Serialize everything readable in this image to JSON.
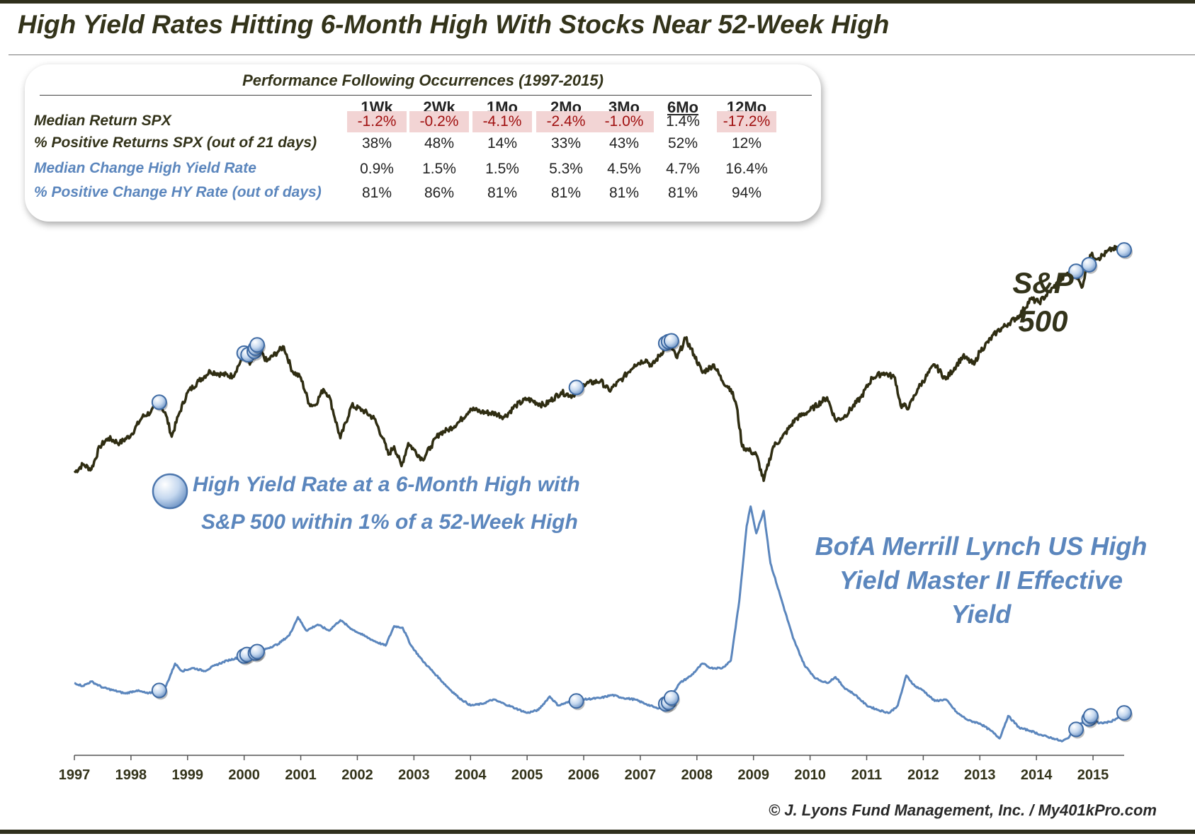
{
  "title": "High Yield Rates Hitting 6-Month High With Stocks Near 52-Week High",
  "credit": "© J. Lyons Fund Management, Inc. / My401kPro.com",
  "table": {
    "title": "Performance Following Occurrences (1997-2015)",
    "columns": [
      "1Wk",
      "2Wk",
      "1Mo",
      "2Mo",
      "3Mo",
      "6Mo",
      "12Mo"
    ],
    "rows": [
      {
        "label": "Median Return SPX",
        "values": [
          "-1.2%",
          "-0.2%",
          "-4.1%",
          "-2.4%",
          "-1.0%",
          "1.4%",
          "-17.2%"
        ]
      },
      {
        "label": "% Positive Returns SPX (out of 21 days)",
        "values": [
          "38%",
          "48%",
          "14%",
          "33%",
          "43%",
          "52%",
          "12%"
        ]
      },
      {
        "label": "Median Change High Yield Rate",
        "values": [
          "0.9%",
          "1.5%",
          "1.5%",
          "5.3%",
          "4.5%",
          "4.7%",
          "16.4%"
        ]
      },
      {
        "label": "% Positive Change HY Rate (out of days)",
        "values": [
          "81%",
          "86%",
          "81%",
          "81%",
          "81%",
          "81%",
          "94%"
        ]
      }
    ]
  },
  "legend": {
    "line1": "High Yield Rate at a 6-Month High with",
    "line2": "S&P 500 within 1% of a 52-Week High"
  },
  "labels": {
    "spx_line1": "S&P",
    "spx_line2": "500",
    "hy_line1": "BofA Merrill Lynch US High",
    "hy_line2": "Yield Master II Effective",
    "hy_line3": "Yield"
  },
  "colors": {
    "spx": "#2f2d12",
    "hy": "#5b86bd",
    "negative_cell": "#f2d4d4",
    "negative_text": "#a01010"
  },
  "chart_data": {
    "type": "line",
    "title": "High Yield Rates Hitting 6-Month High With Stocks Near 52-Week High",
    "x_tick_labels": [
      "1997",
      "1998",
      "1999",
      "2000",
      "2001",
      "2002",
      "2003",
      "2004",
      "2005",
      "2006",
      "2007",
      "2008",
      "2009",
      "2010",
      "2011",
      "2012",
      "2013",
      "2014",
      "2015"
    ],
    "xlim": [
      1997.0,
      2015.55
    ],
    "series": [
      {
        "name": "S&P 500",
        "ylim": [
          600,
          2200
        ],
        "points": [
          [
            1997.0,
            740
          ],
          [
            1997.15,
            790
          ],
          [
            1997.3,
            760
          ],
          [
            1997.45,
            900
          ],
          [
            1997.6,
            950
          ],
          [
            1997.8,
            920
          ],
          [
            1998.0,
            970
          ],
          [
            1998.2,
            1080
          ],
          [
            1998.35,
            1110
          ],
          [
            1998.5,
            1170
          ],
          [
            1998.62,
            1090
          ],
          [
            1998.72,
            960
          ],
          [
            1998.85,
            1100
          ],
          [
            1999.0,
            1230
          ],
          [
            1999.2,
            1300
          ],
          [
            1999.4,
            1360
          ],
          [
            1999.6,
            1340
          ],
          [
            1999.8,
            1330
          ],
          [
            2000.0,
            1460
          ],
          [
            2000.1,
            1400
          ],
          [
            2000.25,
            1500
          ],
          [
            2000.4,
            1420
          ],
          [
            2000.6,
            1480
          ],
          [
            2000.7,
            1510
          ],
          [
            2000.85,
            1360
          ],
          [
            2001.0,
            1320
          ],
          [
            2001.15,
            1160
          ],
          [
            2001.25,
            1150
          ],
          [
            2001.4,
            1250
          ],
          [
            2001.5,
            1210
          ],
          [
            2001.7,
            950
          ],
          [
            2001.9,
            1150
          ],
          [
            2002.1,
            1120
          ],
          [
            2002.3,
            1070
          ],
          [
            2002.45,
            950
          ],
          [
            2002.55,
            850
          ],
          [
            2002.65,
            900
          ],
          [
            2002.78,
            780
          ],
          [
            2002.9,
            920
          ],
          [
            2003.0,
            880
          ],
          [
            2003.15,
            820
          ],
          [
            2003.3,
            900
          ],
          [
            2003.45,
            980
          ],
          [
            2003.6,
            1000
          ],
          [
            2003.8,
            1050
          ],
          [
            2004.0,
            1130
          ],
          [
            2004.2,
            1110
          ],
          [
            2004.45,
            1100
          ],
          [
            2004.6,
            1080
          ],
          [
            2004.8,
            1150
          ],
          [
            2005.0,
            1190
          ],
          [
            2005.3,
            1150
          ],
          [
            2005.6,
            1230
          ],
          [
            2005.8,
            1210
          ],
          [
            2006.0,
            1280
          ],
          [
            2006.3,
            1300
          ],
          [
            2006.45,
            1240
          ],
          [
            2006.7,
            1320
          ],
          [
            2006.9,
            1400
          ],
          [
            2007.1,
            1430
          ],
          [
            2007.2,
            1390
          ],
          [
            2007.5,
            1530
          ],
          [
            2007.65,
            1440
          ],
          [
            2007.8,
            1560
          ],
          [
            2007.95,
            1460
          ],
          [
            2008.1,
            1350
          ],
          [
            2008.3,
            1400
          ],
          [
            2008.45,
            1300
          ],
          [
            2008.6,
            1250
          ],
          [
            2008.7,
            1150
          ],
          [
            2008.8,
            900
          ],
          [
            2008.95,
            870
          ],
          [
            2009.05,
            850
          ],
          [
            2009.18,
            690
          ],
          [
            2009.35,
            900
          ],
          [
            2009.5,
            950
          ],
          [
            2009.75,
            1070
          ],
          [
            2010.0,
            1120
          ],
          [
            2010.3,
            1200
          ],
          [
            2010.45,
            1060
          ],
          [
            2010.6,
            1080
          ],
          [
            2010.9,
            1200
          ],
          [
            2011.1,
            1320
          ],
          [
            2011.3,
            1350
          ],
          [
            2011.5,
            1320
          ],
          [
            2011.6,
            1150
          ],
          [
            2011.75,
            1140
          ],
          [
            2011.9,
            1250
          ],
          [
            2012.2,
            1400
          ],
          [
            2012.4,
            1310
          ],
          [
            2012.7,
            1450
          ],
          [
            2012.9,
            1400
          ],
          [
            2013.0,
            1480
          ],
          [
            2013.3,
            1600
          ],
          [
            2013.5,
            1650
          ],
          [
            2013.7,
            1700
          ],
          [
            2013.9,
            1800
          ],
          [
            2014.05,
            1780
          ],
          [
            2014.3,
            1870
          ],
          [
            2014.55,
            1960
          ],
          [
            2014.7,
            1950
          ],
          [
            2014.8,
            1870
          ],
          [
            2014.95,
            2070
          ],
          [
            2015.1,
            2050
          ],
          [
            2015.35,
            2110
          ],
          [
            2015.45,
            2100
          ],
          [
            2015.55,
            2090
          ]
        ],
        "signals": [
          [
            1998.5,
            1170
          ],
          [
            2000.0,
            1470
          ],
          [
            2000.07,
            1460
          ],
          [
            2000.18,
            1480
          ],
          [
            2000.2,
            1500
          ],
          [
            2000.23,
            1520
          ],
          [
            2007.45,
            1530
          ],
          [
            2007.5,
            1540
          ],
          [
            2007.55,
            1545
          ],
          [
            2005.87,
            1260
          ],
          [
            2014.7,
            1970
          ],
          [
            2014.93,
            2010
          ],
          [
            2015.55,
            2100
          ]
        ]
      },
      {
        "name": "BofA Merrill Lynch US High Yield Master II Effective Yield",
        "ylim": [
          4.5,
          22
        ],
        "points": [
          [
            1997.0,
            9.0
          ],
          [
            1997.15,
            8.8
          ],
          [
            1997.3,
            9.1
          ],
          [
            1997.5,
            8.7
          ],
          [
            1997.7,
            8.5
          ],
          [
            1997.9,
            8.3
          ],
          [
            1998.1,
            8.5
          ],
          [
            1998.3,
            8.3
          ],
          [
            1998.5,
            8.5
          ],
          [
            1998.62,
            8.8
          ],
          [
            1998.78,
            10.3
          ],
          [
            1998.9,
            9.8
          ],
          [
            1999.1,
            10.0
          ],
          [
            1999.3,
            9.8
          ],
          [
            1999.5,
            10.2
          ],
          [
            1999.7,
            10.5
          ],
          [
            1999.9,
            10.7
          ],
          [
            2000.0,
            10.8
          ],
          [
            2000.2,
            11.0
          ],
          [
            2000.4,
            11.3
          ],
          [
            2000.6,
            11.6
          ],
          [
            2000.8,
            12.2
          ],
          [
            2000.95,
            13.4
          ],
          [
            2001.1,
            12.5
          ],
          [
            2001.3,
            12.9
          ],
          [
            2001.5,
            12.5
          ],
          [
            2001.7,
            13.2
          ],
          [
            2001.9,
            12.6
          ],
          [
            2002.1,
            12.2
          ],
          [
            2002.3,
            11.8
          ],
          [
            2002.5,
            11.5
          ],
          [
            2002.65,
            12.8
          ],
          [
            2002.8,
            12.7
          ],
          [
            2002.95,
            11.5
          ],
          [
            2003.15,
            10.5
          ],
          [
            2003.4,
            9.5
          ],
          [
            2003.6,
            8.7
          ],
          [
            2003.8,
            8.0
          ],
          [
            2004.0,
            7.5
          ],
          [
            2004.2,
            7.6
          ],
          [
            2004.4,
            7.9
          ],
          [
            2004.6,
            7.6
          ],
          [
            2004.8,
            7.3
          ],
          [
            2005.0,
            7.0
          ],
          [
            2005.2,
            7.2
          ],
          [
            2005.4,
            8.1
          ],
          [
            2005.55,
            7.5
          ],
          [
            2005.8,
            7.8
          ],
          [
            2006.0,
            7.9
          ],
          [
            2006.3,
            8.0
          ],
          [
            2006.5,
            8.2
          ],
          [
            2006.7,
            8.0
          ],
          [
            2006.9,
            7.9
          ],
          [
            2007.1,
            7.6
          ],
          [
            2007.3,
            7.3
          ],
          [
            2007.45,
            7.6
          ],
          [
            2007.55,
            8.2
          ],
          [
            2007.7,
            9.0
          ],
          [
            2007.9,
            9.5
          ],
          [
            2008.1,
            10.3
          ],
          [
            2008.25,
            10.0
          ],
          [
            2008.45,
            10.0
          ],
          [
            2008.6,
            10.5
          ],
          [
            2008.75,
            14.5
          ],
          [
            2008.88,
            19.5
          ],
          [
            2008.95,
            20.8
          ],
          [
            2009.05,
            19.0
          ],
          [
            2009.18,
            20.5
          ],
          [
            2009.3,
            17.0
          ],
          [
            2009.5,
            14.5
          ],
          [
            2009.7,
            12.0
          ],
          [
            2009.9,
            10.2
          ],
          [
            2010.1,
            9.3
          ],
          [
            2010.3,
            9.0
          ],
          [
            2010.45,
            9.4
          ],
          [
            2010.6,
            8.7
          ],
          [
            2010.8,
            8.2
          ],
          [
            2011.0,
            7.5
          ],
          [
            2011.2,
            7.2
          ],
          [
            2011.4,
            7.0
          ],
          [
            2011.55,
            7.5
          ],
          [
            2011.7,
            9.5
          ],
          [
            2011.85,
            8.8
          ],
          [
            2012.0,
            8.5
          ],
          [
            2012.2,
            7.8
          ],
          [
            2012.4,
            7.9
          ],
          [
            2012.6,
            7.0
          ],
          [
            2012.8,
            6.5
          ],
          [
            2013.0,
            6.3
          ],
          [
            2013.2,
            5.8
          ],
          [
            2013.35,
            5.3
          ],
          [
            2013.5,
            6.8
          ],
          [
            2013.7,
            6.0
          ],
          [
            2013.9,
            5.8
          ],
          [
            2014.1,
            5.5
          ],
          [
            2014.3,
            5.3
          ],
          [
            2014.45,
            5.1
          ],
          [
            2014.55,
            5.3
          ],
          [
            2014.7,
            6.0
          ],
          [
            2014.85,
            6.5
          ],
          [
            2014.95,
            6.9
          ],
          [
            2015.1,
            6.3
          ],
          [
            2015.3,
            6.4
          ],
          [
            2015.45,
            6.7
          ],
          [
            2015.55,
            7.0
          ]
        ],
        "signals": [
          [
            1998.5,
            8.5
          ],
          [
            2000.0,
            10.8
          ],
          [
            2000.05,
            10.9
          ],
          [
            2000.2,
            11.0
          ],
          [
            2000.23,
            11.1
          ],
          [
            2005.87,
            7.8
          ],
          [
            2007.45,
            7.6
          ],
          [
            2007.5,
            7.7
          ],
          [
            2007.55,
            8.0
          ],
          [
            2014.7,
            5.9
          ],
          [
            2014.93,
            6.6
          ],
          [
            2014.96,
            6.8
          ],
          [
            2015.55,
            7.0
          ]
        ]
      }
    ]
  }
}
